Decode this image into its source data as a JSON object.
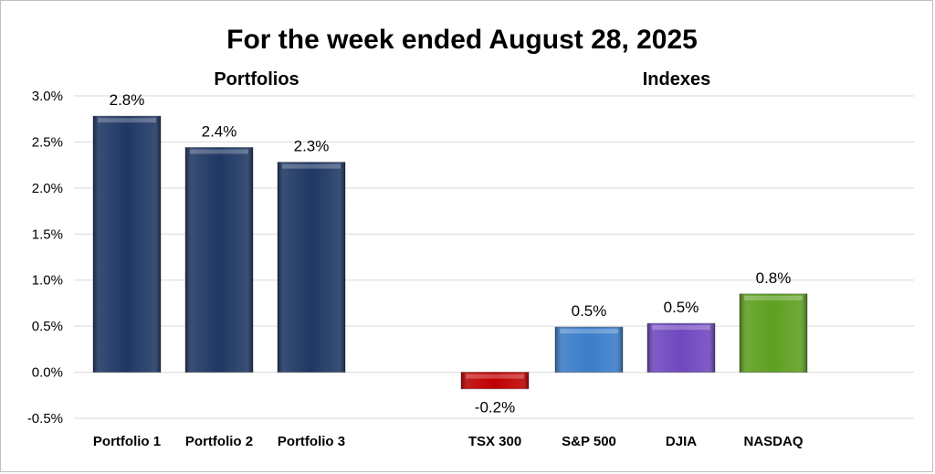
{
  "chart_data": {
    "type": "bar",
    "title": "For the week ended August 28, 2025",
    "groups": [
      {
        "label": "Portfolios",
        "categories": [
          "Portfolio 1",
          "Portfolio 2",
          "Portfolio 3"
        ]
      },
      {
        "label": "Indexes",
        "categories": [
          "TSX 300",
          "S&P 500",
          "DJIA",
          "NASDAQ"
        ]
      }
    ],
    "categories": [
      "Portfolio 1",
      "Portfolio 2",
      "Portfolio 3",
      "TSX 300",
      "S&P 500",
      "DJIA",
      "NASDAQ"
    ],
    "values": [
      2.78,
      2.44,
      2.28,
      -0.18,
      0.49,
      0.53,
      0.85
    ],
    "data_labels": [
      "2.8%",
      "2.4%",
      "2.3%",
      "-0.2%",
      "0.5%",
      "0.5%",
      "0.8%"
    ],
    "bar_colors": [
      "#1f3864",
      "#1f3864",
      "#1f3864",
      "#c00000",
      "#3a7dc9",
      "#7048c0",
      "#5ea020"
    ],
    "ylim": [
      -0.5,
      3.0
    ],
    "yticks": [
      3.0,
      2.5,
      2.0,
      1.5,
      1.0,
      0.5,
      0.0,
      -0.5
    ],
    "ytick_labels": [
      "3.0%",
      "2.5%",
      "2.0%",
      "1.5%",
      "1.0%",
      "0.5%",
      "0.0%",
      "-0.5%"
    ],
    "xlabel": "",
    "ylabel": "",
    "grid": true,
    "legend": "none"
  }
}
